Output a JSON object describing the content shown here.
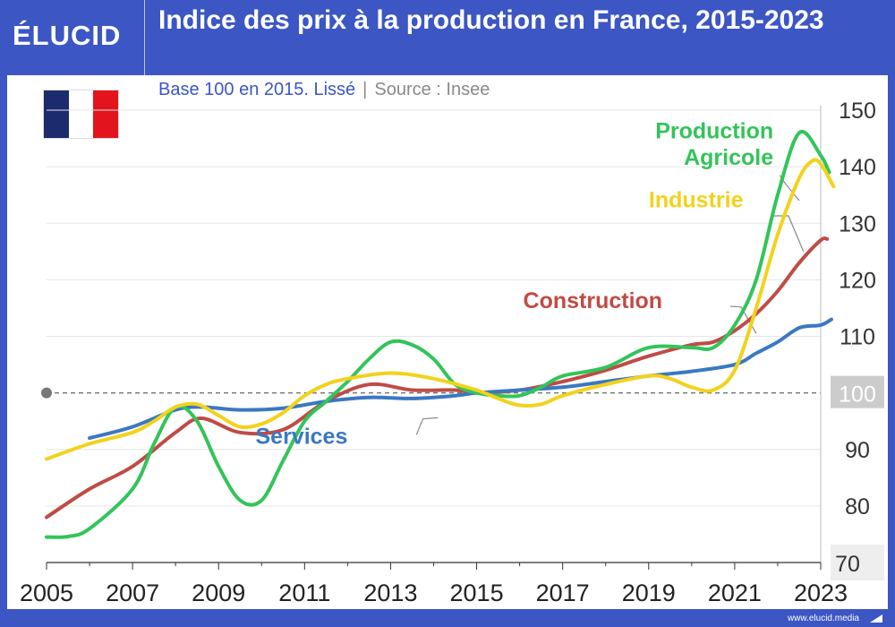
{
  "brand": {
    "logo": "ÉLUCID",
    "footer_url": "www.elucid.media"
  },
  "header": {
    "title": "Indice des prix à la production en France, 2015-2023",
    "subtitle": "Base 100 en 2015. Lissé",
    "source": "Source : Insee",
    "separator": "|"
  },
  "colors": {
    "background": "#3c56c4",
    "flag": [
      "#1c2b6e",
      "#ffffff",
      "#e3141c"
    ],
    "reference_badge": "#cccccc"
  },
  "chart_data": {
    "type": "line",
    "title": "Indice des prix à la production en France, 2015-2023",
    "subtitle": "Base 100 en 2015. Lissé",
    "xlabel": "",
    "ylabel": "",
    "xlim": [
      2005,
      2023.3
    ],
    "ylim": [
      70,
      150
    ],
    "x_ticks": [
      2005,
      2007,
      2009,
      2011,
      2013,
      2015,
      2017,
      2019,
      2021,
      2023
    ],
    "y_ticks": [
      70,
      80,
      90,
      100,
      110,
      120,
      130,
      140,
      150
    ],
    "y_axis_position": "right",
    "grid": "horizontal",
    "reference_line": {
      "value": 100,
      "label": "100",
      "style": "dashed"
    },
    "legend": "inline labels",
    "series": [
      {
        "name": "Services",
        "color": "#3a78c2",
        "label_x": 2012.0,
        "label_y": 91,
        "label_anchor": "end",
        "label_pointer": [
          [
            2013.6,
            92.6
          ],
          [
            2013.75,
            95.4
          ],
          [
            2014.1,
            95.6
          ]
        ],
        "points": [
          [
            2006.0,
            92.0
          ],
          [
            2007.0,
            94.0
          ],
          [
            2008.0,
            97.0
          ],
          [
            2008.6,
            97.5
          ],
          [
            2009.5,
            97.0
          ],
          [
            2010.5,
            97.3
          ],
          [
            2011.5,
            98.5
          ],
          [
            2012.5,
            99.2
          ],
          [
            2013.5,
            99.0
          ],
          [
            2014.5,
            99.5
          ],
          [
            2015.0,
            100.0
          ],
          [
            2016.0,
            100.5
          ],
          [
            2017.0,
            101.0
          ],
          [
            2018.0,
            102.0
          ],
          [
            2019.0,
            103.0
          ],
          [
            2020.0,
            103.8
          ],
          [
            2021.0,
            105.0
          ],
          [
            2021.5,
            107.0
          ],
          [
            2022.0,
            109.0
          ],
          [
            2022.5,
            111.5
          ],
          [
            2023.0,
            112.0
          ],
          [
            2023.25,
            113.0
          ]
        ]
      },
      {
        "name": "Construction",
        "color": "#c04b45",
        "label_x": 2017.7,
        "label_y": 115,
        "label_anchor": "middle",
        "label_pointer": [
          [
            2020.9,
            115.3
          ],
          [
            2021.15,
            115.2
          ],
          [
            2021.5,
            110.5
          ]
        ],
        "points": [
          [
            2005.0,
            78.0
          ],
          [
            2006.0,
            83.0
          ],
          [
            2007.0,
            87.0
          ],
          [
            2008.0,
            93.0
          ],
          [
            2008.6,
            95.5
          ],
          [
            2009.5,
            93.0
          ],
          [
            2010.5,
            93.5
          ],
          [
            2011.5,
            98.5
          ],
          [
            2012.5,
            101.5
          ],
          [
            2013.5,
            100.5
          ],
          [
            2014.5,
            100.5
          ],
          [
            2015.0,
            100.0
          ],
          [
            2016.0,
            100.5
          ],
          [
            2017.0,
            102.0
          ],
          [
            2018.0,
            104.0
          ],
          [
            2019.0,
            106.5
          ],
          [
            2020.0,
            108.5
          ],
          [
            2020.5,
            109.0
          ],
          [
            2021.0,
            111.0
          ],
          [
            2021.5,
            114.0
          ],
          [
            2022.0,
            118.0
          ],
          [
            2022.5,
            123.0
          ],
          [
            2023.0,
            127.0
          ],
          [
            2023.15,
            127.2
          ]
        ]
      },
      {
        "name": "Production",
        "color": "#33c45a",
        "label_x": 2021.9,
        "label_y": 145,
        "label_anchor": "end",
        "label_pointer": null,
        "points": [
          [
            2005.0,
            74.5
          ],
          [
            2005.5,
            74.6
          ],
          [
            2006.0,
            76.0
          ],
          [
            2007.0,
            83.0
          ],
          [
            2007.5,
            91.0
          ],
          [
            2008.0,
            97.5
          ],
          [
            2008.5,
            95.0
          ],
          [
            2009.0,
            87.0
          ],
          [
            2009.5,
            81.0
          ],
          [
            2010.0,
            81.0
          ],
          [
            2010.5,
            88.0
          ],
          [
            2011.0,
            95.0
          ],
          [
            2011.5,
            98.5
          ],
          [
            2012.0,
            102.0
          ],
          [
            2012.5,
            106.0
          ],
          [
            2013.0,
            109.0
          ],
          [
            2013.5,
            108.5
          ],
          [
            2014.0,
            106.0
          ],
          [
            2014.5,
            101.5
          ],
          [
            2015.0,
            100.0
          ],
          [
            2015.5,
            99.5
          ],
          [
            2016.0,
            99.5
          ],
          [
            2016.5,
            101.0
          ],
          [
            2017.0,
            103.0
          ],
          [
            2018.0,
            104.5
          ],
          [
            2019.0,
            108.0
          ],
          [
            2020.0,
            108.0
          ],
          [
            2020.5,
            108.0
          ],
          [
            2021.0,
            112.0
          ],
          [
            2021.5,
            120.0
          ],
          [
            2022.0,
            135.0
          ],
          [
            2022.5,
            146.0
          ],
          [
            2023.0,
            142.0
          ],
          [
            2023.2,
            139.0
          ]
        ]
      },
      {
        "name": "Agricole",
        "color": "#33c45a",
        "label_x": 2021.9,
        "label_y": 140.3,
        "label_anchor": "end",
        "label_pointer": [
          [
            2022.05,
            138.5
          ],
          [
            2022.15,
            137.3
          ],
          [
            2022.5,
            134.0
          ]
        ],
        "points": []
      },
      {
        "name": "Industrie",
        "color": "#f2d21c",
        "label_x": 2021.2,
        "label_y": 132.8,
        "label_anchor": "end",
        "label_pointer": [
          [
            2021.85,
            131.3
          ],
          [
            2022.25,
            131.3
          ],
          [
            2022.6,
            125.0
          ]
        ],
        "points": [
          [
            2005.0,
            88.3
          ],
          [
            2006.0,
            91.0
          ],
          [
            2007.0,
            93.0
          ],
          [
            2007.5,
            95.0
          ],
          [
            2008.0,
            97.5
          ],
          [
            2008.5,
            98.0
          ],
          [
            2009.0,
            96.0
          ],
          [
            2009.5,
            94.0
          ],
          [
            2010.0,
            94.5
          ],
          [
            2010.5,
            96.5
          ],
          [
            2011.0,
            99.5
          ],
          [
            2011.5,
            101.5
          ],
          [
            2012.0,
            102.5
          ],
          [
            2013.0,
            103.5
          ],
          [
            2014.0,
            102.5
          ],
          [
            2015.0,
            100.5
          ],
          [
            2015.5,
            99.0
          ],
          [
            2016.0,
            97.8
          ],
          [
            2016.5,
            98.0
          ],
          [
            2017.0,
            99.5
          ],
          [
            2018.0,
            101.5
          ],
          [
            2019.0,
            103.0
          ],
          [
            2019.5,
            102.5
          ],
          [
            2020.0,
            101.0
          ],
          [
            2020.5,
            100.5
          ],
          [
            2021.0,
            104.0
          ],
          [
            2021.5,
            115.0
          ],
          [
            2022.0,
            128.0
          ],
          [
            2022.5,
            138.0
          ],
          [
            2022.8,
            141.0
          ],
          [
            2023.0,
            140.5
          ],
          [
            2023.3,
            136.5
          ]
        ]
      }
    ]
  }
}
